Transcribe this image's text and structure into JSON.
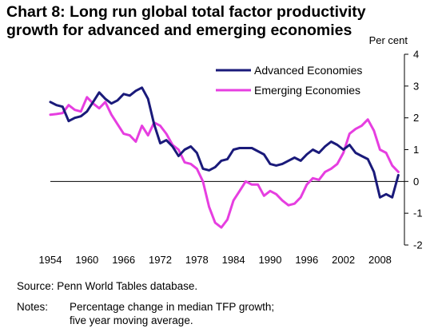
{
  "title_line1": "Chart 8: Long run global total factor productivity",
  "title_line2": "growth for advanced and emerging economies",
  "source": "Source: Penn World Tables database.",
  "notes_label": "Notes:",
  "notes_line1": "Percentage change in median TFP growth;",
  "notes_line2": "five year moving average.",
  "colors": {
    "advanced": "#1a1a7a",
    "emerging": "#e63ee0"
  },
  "chart_data": {
    "type": "line",
    "ylabel": "Per cent",
    "ylim": [
      -2,
      4
    ],
    "yticks": [
      -2,
      -1,
      0,
      1,
      2,
      3,
      4
    ],
    "xlim": [
      1954,
      2012
    ],
    "xticks": [
      1954,
      1960,
      1966,
      1972,
      1978,
      1984,
      1990,
      1996,
      2002,
      2008
    ],
    "legend_position": "top-center",
    "x": [
      1954,
      1955,
      1956,
      1957,
      1958,
      1959,
      1960,
      1961,
      1962,
      1963,
      1964,
      1965,
      1966,
      1967,
      1968,
      1969,
      1970,
      1971,
      1972,
      1973,
      1974,
      1975,
      1976,
      1977,
      1978,
      1979,
      1980,
      1981,
      1982,
      1983,
      1984,
      1985,
      1986,
      1987,
      1988,
      1989,
      1990,
      1991,
      1992,
      1993,
      1994,
      1995,
      1996,
      1997,
      1998,
      1999,
      2000,
      2001,
      2002,
      2003,
      2004,
      2005,
      2006,
      2007,
      2008,
      2009,
      2010,
      2011
    ],
    "series": [
      {
        "name": "Advanced Economies",
        "values": [
          2.5,
          2.4,
          2.35,
          1.9,
          2.0,
          2.05,
          2.2,
          2.5,
          2.8,
          2.6,
          2.45,
          2.55,
          2.75,
          2.7,
          2.85,
          2.95,
          2.6,
          1.8,
          1.2,
          1.3,
          1.1,
          0.8,
          1.0,
          1.1,
          0.9,
          0.4,
          0.35,
          0.45,
          0.65,
          0.7,
          1.0,
          1.05,
          1.05,
          1.05,
          0.95,
          0.85,
          0.55,
          0.5,
          0.55,
          0.65,
          0.75,
          0.65,
          0.85,
          1.0,
          0.9,
          1.1,
          1.25,
          1.15,
          1.0,
          1.15,
          0.9,
          0.8,
          0.7,
          0.3,
          -0.5,
          -0.4,
          -0.5,
          0.2
        ]
      },
      {
        "name": "Emerging Economies",
        "values": [
          2.1,
          2.12,
          2.15,
          2.4,
          2.25,
          2.2,
          2.65,
          2.45,
          2.3,
          2.5,
          2.1,
          1.8,
          1.5,
          1.45,
          1.25,
          1.75,
          1.45,
          1.85,
          1.75,
          1.5,
          1.15,
          1.0,
          0.6,
          0.55,
          0.4,
          0.0,
          -0.8,
          -1.3,
          -1.45,
          -1.2,
          -0.6,
          -0.3,
          0.0,
          -0.1,
          -0.1,
          -0.45,
          -0.3,
          -0.4,
          -0.6,
          -0.75,
          -0.7,
          -0.5,
          -0.1,
          0.1,
          0.05,
          0.3,
          0.4,
          0.55,
          0.9,
          1.5,
          1.65,
          1.75,
          1.95,
          1.6,
          1.0,
          0.9,
          0.5,
          0.3
        ]
      }
    ]
  }
}
